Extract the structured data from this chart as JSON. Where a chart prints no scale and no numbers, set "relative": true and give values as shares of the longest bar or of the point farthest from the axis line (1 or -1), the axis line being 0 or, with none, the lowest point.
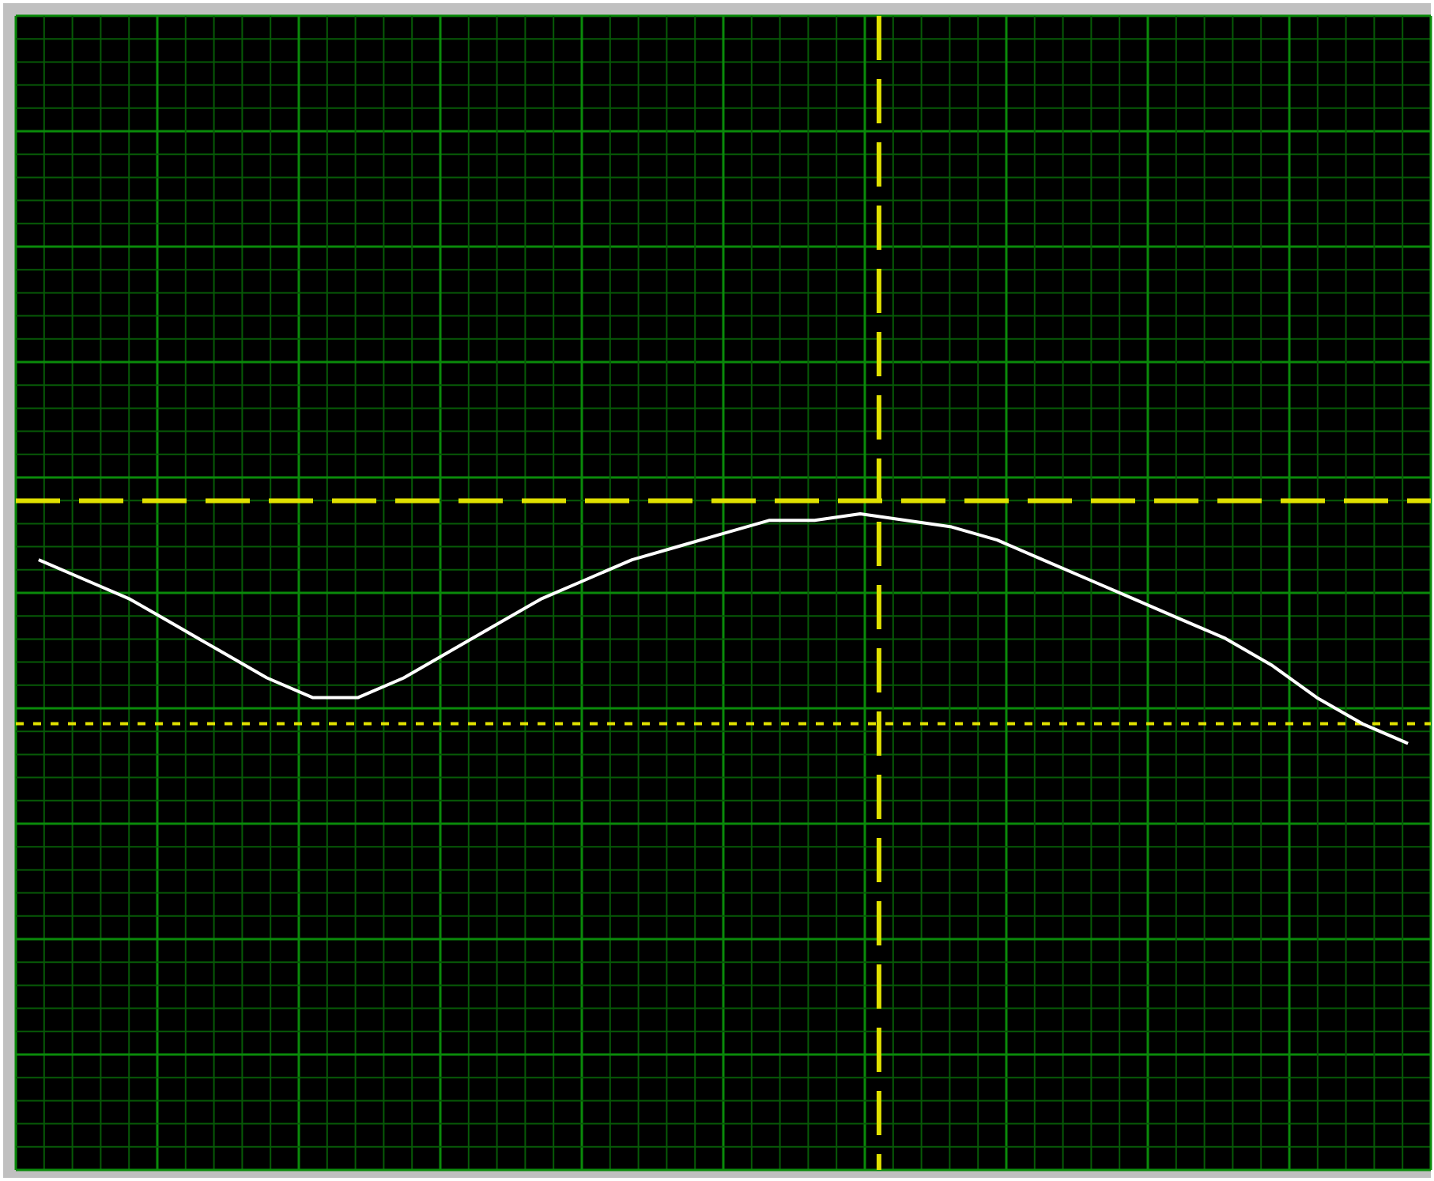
{
  "chart_data": {
    "type": "line",
    "relative": true,
    "grid": true,
    "line_style": "solid",
    "categories": [
      null,
      null,
      null,
      null,
      null,
      null,
      null,
      null,
      null,
      null,
      null,
      null,
      null,
      null,
      null,
      null,
      null,
      null,
      null,
      null,
      null,
      null,
      null,
      null,
      null,
      null,
      null,
      null,
      null,
      null,
      null
    ],
    "series": [
      {
        "color": "#ffffff",
        "values": [
          0.93,
          0.9,
          0.87,
          0.83,
          0.79,
          0.75,
          0.72,
          0.72,
          0.75,
          0.79,
          0.83,
          0.87,
          0.9,
          0.93,
          0.95,
          0.97,
          0.99,
          0.99,
          1,
          0.99,
          0.98,
          0.96,
          0.93,
          0.9,
          0.87,
          0.84,
          0.81,
          0.77,
          0.72,
          0.68,
          0.65
        ]
      }
    ],
    "ref_lines": [
      {
        "axis": "y",
        "value": 1.02,
        "color": "#e0e000",
        "line_style": "dashed"
      },
      {
        "axis": "y",
        "value": 0.68,
        "color": "#e0e000",
        "line_style": "dotted"
      }
    ]
  }
}
